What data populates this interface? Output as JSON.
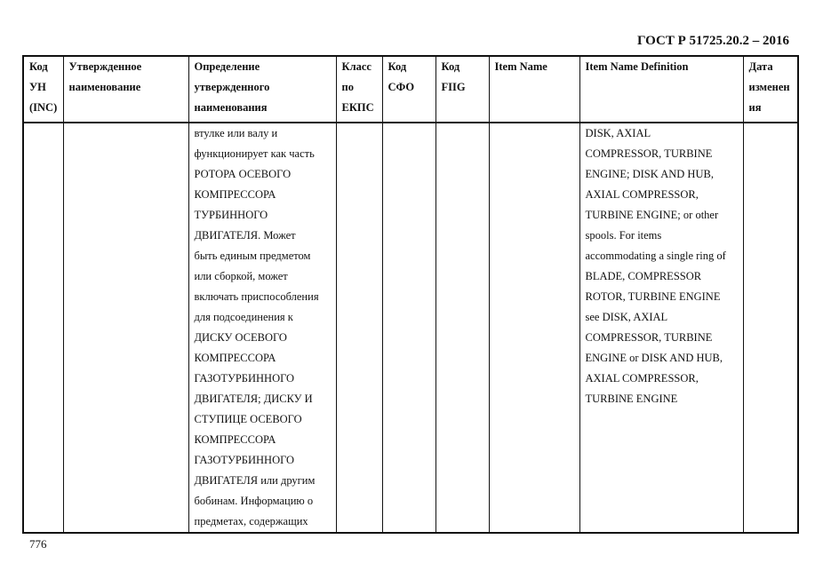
{
  "header": {
    "doc_title": "ГОСТ Р 51725.20.2 – 2016"
  },
  "table": {
    "columns": [
      [
        "Код",
        "УН",
        "(INC)"
      ],
      [
        "Утвержденное",
        "наименование"
      ],
      [
        "Определение",
        "утвержденного",
        "наименования"
      ],
      [
        "Класс",
        "по",
        "ЕКПС"
      ],
      [
        "Код",
        "СФО"
      ],
      [
        "Код",
        "FIIG"
      ],
      [
        "Item Name"
      ],
      [
        "Item Name Definition"
      ],
      [
        "Дата",
        "изменен",
        "ия"
      ]
    ],
    "row": {
      "definition_ru": [
        "втулке или валу и",
        "функционирует как часть",
        "РОТОРА ОСЕВОГО",
        "КОМПРЕССОРА",
        "ТУРБИННОГО",
        "ДВИГАТЕЛЯ. Может",
        "быть единым предметом",
        "или сборкой,  может",
        "включать приспособления",
        "для подсоединения к",
        "ДИСКУ ОСЕВОГО",
        "КОМПРЕССОРА",
        "ГАЗОТУРБИННОГО",
        "ДВИГАТЕЛЯ; ДИСКУ И",
        "СТУПИЦЕ ОСЕВОГО",
        "КОМПРЕССОРА",
        "ГАЗОТУРБИННОГО",
        "ДВИГАТЕЛЯ или другим",
        "бобинам. Информацию о",
        "предметах, содержащих"
      ],
      "definition_en": [
        "DISK, AXIAL",
        "COMPRESSOR, TURBINE",
        "ENGINE; DISK AND HUB,",
        "AXIAL COMPRESSOR,",
        "TURBINE ENGINE; or other",
        "spools. For items",
        "accommodating a single ring of",
        "BLADE, COMPRESSOR",
        "ROTOR, TURBINE ENGINE",
        "see DISK, AXIAL",
        "COMPRESSOR, TURBINE",
        "ENGINE or DISK AND HUB,",
        "AXIAL COMPRESSOR,",
        "TURBINE ENGINE"
      ]
    }
  },
  "footer": {
    "page_number": "776"
  }
}
